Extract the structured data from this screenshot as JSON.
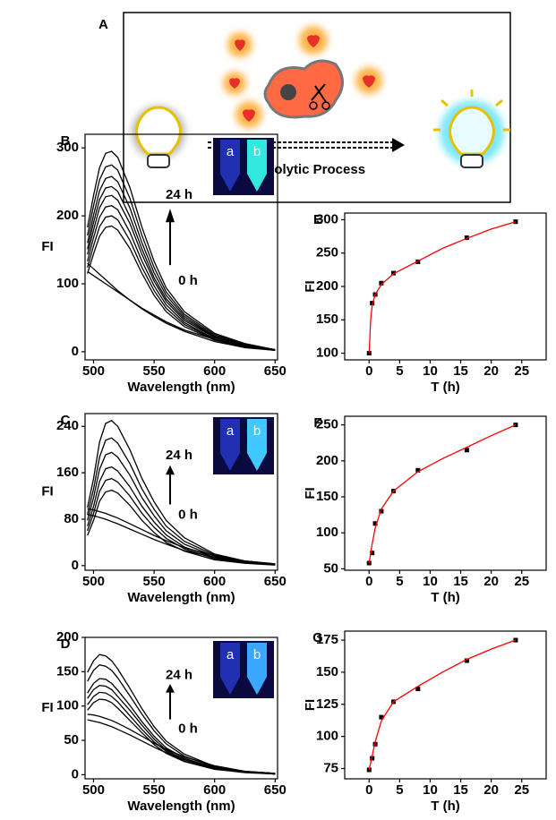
{
  "schematic": {
    "label": "A",
    "caption": "Proteolytic Process"
  },
  "chart_data": [
    {
      "type": "line",
      "panel_label": "B",
      "xlabel": "Wavelength (nm)",
      "ylabel": "FI",
      "x": [
        495,
        500,
        505,
        510,
        515,
        520,
        530,
        540,
        550,
        560,
        575,
        600,
        625,
        650
      ],
      "xlim": [
        493,
        652
      ],
      "ylim": [
        -12,
        320
      ],
      "xticks": [
        500,
        550,
        600,
        650
      ],
      "yticks": [
        0,
        100,
        200,
        300
      ],
      "annotations": [
        "24 h",
        "0 h"
      ],
      "inset_labels": [
        "a",
        "b"
      ],
      "series": [
        {
          "color": "#000000",
          "values": [
            183,
            230,
            271,
            292,
            295,
            286,
            242,
            183,
            133,
            94,
            59,
            27,
            12,
            3
          ]
        },
        {
          "color": "#000000",
          "values": [
            171,
            215,
            253,
            272,
            275,
            267,
            226,
            171,
            124,
            88,
            55,
            25,
            11,
            3
          ]
        },
        {
          "color": "#000000",
          "values": [
            160,
            201,
            237,
            255,
            258,
            250,
            212,
            160,
            116,
            83,
            52,
            23,
            10,
            3
          ]
        },
        {
          "color": "#000000",
          "values": [
            151,
            190,
            224,
            241,
            243,
            236,
            199,
            151,
            109,
            78,
            49,
            22,
            10,
            2
          ]
        },
        {
          "color": "#000000",
          "values": [
            143,
            179,
            212,
            228,
            230,
            223,
            189,
            143,
            104,
            74,
            46,
            21,
            9,
            2
          ]
        },
        {
          "color": "#000000",
          "values": [
            133,
            168,
            198,
            213,
            215,
            209,
            176,
            133,
            97,
            69,
            43,
            19,
            9,
            2
          ]
        },
        {
          "color": "#000000",
          "values": [
            124,
            156,
            184,
            198,
            200,
            194,
            164,
            124,
            90,
            64,
            40,
            18,
            8,
            2
          ]
        },
        {
          "color": "#000000",
          "values": [
            115,
            144,
            170,
            183,
            185,
            179,
            152,
            115,
            83,
            59,
            37,
            17,
            7,
            2
          ]
        },
        {
          "color": "#000000",
          "values": [
            130,
            122,
            114,
            106,
            98,
            90,
            76,
            63,
            52,
            42,
            30,
            15,
            6,
            2
          ]
        },
        {
          "color": "#000000",
          "values": [
            118,
            112,
            106,
            100,
            94,
            88,
            76,
            64,
            54,
            44,
            32,
            18,
            8,
            3
          ]
        }
      ]
    },
    {
      "type": "line",
      "panel_label": "C",
      "xlabel": "Wavelength (nm)",
      "ylabel": "FI",
      "x": [
        495,
        500,
        505,
        510,
        515,
        520,
        530,
        540,
        550,
        560,
        575,
        600,
        625,
        650
      ],
      "xlim": [
        493,
        652
      ],
      "ylim": [
        -8,
        262
      ],
      "xticks": [
        500,
        550,
        600,
        650
      ],
      "yticks": [
        0,
        80,
        160,
        240
      ],
      "annotations": [
        "24 h",
        "0 h"
      ],
      "inset_labels": [
        "a",
        "b"
      ],
      "series": [
        {
          "color": "#000000",
          "values": [
            100,
            150,
            213,
            245,
            250,
            240,
            200,
            150,
            110,
            78,
            48,
            20,
            8,
            3
          ]
        },
        {
          "color": "#000000",
          "values": [
            88,
            132,
            187,
            216,
            220,
            211,
            176,
            132,
            97,
            68,
            42,
            18,
            7,
            2
          ]
        },
        {
          "color": "#000000",
          "values": [
            78,
            117,
            166,
            191,
            195,
            187,
            156,
            117,
            86,
            60,
            37,
            16,
            6,
            2
          ]
        },
        {
          "color": "#000000",
          "values": [
            68,
            102,
            145,
            167,
            170,
            163,
            136,
            102,
            75,
            53,
            32,
            14,
            5,
            2
          ]
        },
        {
          "color": "#000000",
          "values": [
            60,
            90,
            128,
            147,
            150,
            144,
            120,
            90,
            66,
            47,
            29,
            12,
            5,
            2
          ]
        },
        {
          "color": "#000000",
          "values": [
            52,
            78,
            111,
            127,
            130,
            125,
            104,
            78,
            57,
            40,
            25,
            10,
            4,
            1
          ]
        },
        {
          "color": "#000000",
          "values": [
            98,
            96,
            93,
            90,
            86,
            82,
            72,
            62,
            52,
            43,
            31,
            17,
            8,
            3
          ]
        },
        {
          "color": "#000000",
          "values": [
            88,
            86,
            83,
            80,
            76,
            72,
            63,
            54,
            45,
            37,
            26,
            14,
            6,
            2
          ]
        }
      ]
    },
    {
      "type": "line",
      "panel_label": "D",
      "xlabel": "Wavelength (nm)",
      "ylabel": "FI",
      "x": [
        495,
        500,
        505,
        510,
        515,
        520,
        530,
        540,
        550,
        560,
        575,
        600,
        625,
        650
      ],
      "xlim": [
        493,
        652
      ],
      "ylim": [
        -6,
        200
      ],
      "xticks": [
        500,
        550,
        600,
        650
      ],
      "yticks": [
        0,
        50,
        100,
        150,
        200
      ],
      "annotations": [
        "24 h",
        "0 h"
      ],
      "inset_labels": [
        "a",
        "b"
      ],
      "series": [
        {
          "color": "#000000",
          "values": [
            149,
            166,
            175,
            173,
            166,
            154,
            126,
            96,
            70,
            49,
            30,
            12,
            5,
            2
          ]
        },
        {
          "color": "#000000",
          "values": [
            136,
            152,
            160,
            158,
            152,
            141,
            115,
            88,
            64,
            45,
            27,
            11,
            5,
            2
          ]
        },
        {
          "color": "#000000",
          "values": [
            119,
            133,
            140,
            139,
            133,
            123,
            101,
            77,
            56,
            39,
            24,
            10,
            4,
            1
          ]
        },
        {
          "color": "#000000",
          "values": [
            111,
            124,
            130,
            129,
            124,
            114,
            94,
            72,
            52,
            36,
            22,
            9,
            4,
            1
          ]
        },
        {
          "color": "#000000",
          "values": [
            102,
            114,
            120,
            119,
            114,
            106,
            86,
            66,
            48,
            34,
            20,
            8,
            4,
            1
          ]
        },
        {
          "color": "#000000",
          "values": [
            94,
            105,
            110,
            109,
            105,
            97,
            79,
            61,
            44,
            31,
            19,
            8,
            3,
            1
          ]
        },
        {
          "color": "#000000",
          "values": [
            88,
            87,
            85,
            82,
            79,
            75,
            66,
            56,
            46,
            37,
            26,
            13,
            5,
            2
          ]
        },
        {
          "color": "#000000",
          "values": [
            80,
            78,
            76,
            73,
            70,
            66,
            58,
            49,
            40,
            32,
            22,
            11,
            4,
            1
          ]
        }
      ]
    },
    {
      "type": "scatter",
      "panel_label": "E",
      "xlabel": "T (h)",
      "ylabel": "FI",
      "xlim": [
        -4,
        29
      ],
      "ylim": [
        90,
        310
      ],
      "xticks": [
        0,
        5,
        10,
        15,
        20,
        25
      ],
      "yticks": [
        100,
        150,
        200,
        250,
        300
      ],
      "series": [
        {
          "mode": "markers",
          "color": "#000000",
          "x": [
            0,
            0.5,
            1,
            2,
            4,
            8,
            16,
            24
          ],
          "values": [
            100,
            175,
            188,
            205,
            220,
            237,
            273,
            297
          ]
        },
        {
          "mode": "line",
          "color": "#ff0000",
          "x": [
            0,
            0.25,
            0.5,
            1,
            2,
            4,
            8,
            12,
            16,
            20,
            24
          ],
          "values": [
            100,
            150,
            172,
            188,
            203,
            219,
            238,
            257,
            272,
            286,
            297
          ]
        }
      ]
    },
    {
      "type": "scatter",
      "panel_label": "F",
      "xlabel": "T (h)",
      "ylabel": "FI",
      "xlim": [
        -4,
        29
      ],
      "ylim": [
        48,
        262
      ],
      "xticks": [
        0,
        5,
        10,
        15,
        20,
        25
      ],
      "yticks": [
        50,
        100,
        150,
        200,
        250
      ],
      "series": [
        {
          "mode": "markers",
          "color": "#000000",
          "x": [
            0,
            0.5,
            1,
            2,
            4,
            8,
            16,
            24
          ],
          "values": [
            58,
            72,
            113,
            130,
            158,
            187,
            215,
            250
          ]
        },
        {
          "mode": "line",
          "color": "#ff0000",
          "x": [
            0,
            0.5,
            1,
            2,
            4,
            8,
            12,
            16,
            20,
            24
          ],
          "values": [
            58,
            85,
            107,
            133,
            158,
            185,
            203,
            219,
            235,
            250
          ]
        }
      ]
    },
    {
      "type": "scatter",
      "panel_label": "G",
      "xlabel": "T (h)",
      "ylabel": "FI",
      "xlim": [
        -4,
        29
      ],
      "ylim": [
        67,
        182
      ],
      "xticks": [
        0,
        5,
        10,
        15,
        20,
        25
      ],
      "yticks": [
        75,
        100,
        125,
        150,
        175
      ],
      "series": [
        {
          "mode": "markers",
          "color": "#000000",
          "x": [
            0,
            0.5,
            1,
            2,
            4,
            8,
            16,
            24
          ],
          "values": [
            74,
            83,
            94,
            115,
            127,
            137,
            159,
            175
          ]
        },
        {
          "mode": "line",
          "color": "#ff0000",
          "x": [
            0,
            0.5,
            1,
            2,
            4,
            8,
            12,
            16,
            20,
            24
          ],
          "values": [
            74,
            85,
            96,
            112,
            127,
            139,
            150,
            160,
            168,
            175
          ]
        }
      ]
    }
  ]
}
